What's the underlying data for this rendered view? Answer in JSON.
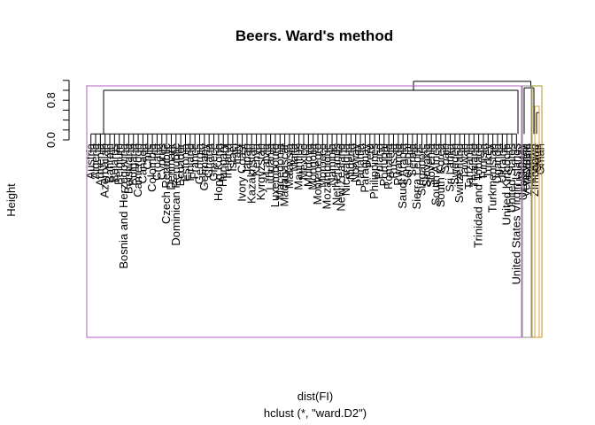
{
  "chart_data": {
    "type": "dendrogram",
    "title": "Beers. Ward's method",
    "xlabel": "dist(FI)",
    "sublabel": "hclust (*, \"ward.D2\")",
    "ylabel": "Height",
    "y_ticks": [
      "0.0",
      "0.8"
    ],
    "ylim": [
      0,
      1.25
    ],
    "root_height": 1.18,
    "group_heights": [
      1.0,
      1.05,
      0.55
    ],
    "rect_colors": [
      "#b45cc8",
      "#8f8f8f",
      "#a89a2a",
      "#e0a030"
    ],
    "leaf_labels": [
      "Austria",
      "Algeria",
      "Armenia",
      "Azerbaijan",
      "Bahrain",
      "Belarus",
      "Belgium",
      "Bosnia and Herzegovina",
      "Botswana",
      "Bulgaria",
      "Cameroon",
      "Canada",
      "Chile",
      "Colombia",
      "Croatia",
      "Cyprus",
      "Czech Republic",
      "Denmark",
      "Dominican Republic",
      "Ecuador",
      "Estonia",
      "Finland",
      "France",
      "Georgia",
      "Germany",
      "Ghana",
      "Greece",
      "Hong Kong",
      "Hungary",
      "Ireland",
      "Israel",
      "Italy",
      "Ivory Coast",
      "Japan",
      "Kazakhstan",
      "Kenya",
      "Kyrgyzstan",
      "Latvia",
      "Lithuania",
      "Luxembourg",
      "Macedonia",
      "Madagascar",
      "Malaysia",
      "Malta",
      "Mauritius",
      "Mexico",
      "Moldova",
      "Mongolia",
      "Montenegro",
      "Morocco",
      "Mozambique",
      "Namibia",
      "Netherlands",
      "New Zealand",
      "Nicaragua",
      "Nigeria",
      "Norway",
      "Panama",
      "Paraguay",
      "Peru",
      "Philippines",
      "Poland",
      "Portugal",
      "Romania",
      "Russia",
      "Rwanda",
      "Saudi Arabia",
      "Senegal",
      "Serbia",
      "Sierra Leone",
      "Singapore",
      "Slovakia",
      "Slovenia",
      "South Africa",
      "South Korea",
      "Spain",
      "Sri Lanka",
      "Sweden",
      "Switzerland",
      "Taiwan",
      "Tanzania",
      "Thailand",
      "Trinidad and Tobago",
      "Tunisia",
      "Turkey",
      "Turkmenistan",
      "Uganda",
      "Ukraine",
      "United Kingdom",
      "United States",
      "United States Virgin Islands",
      "Uruguay",
      "Uzbekistan",
      "Venezuela",
      "Vietnam",
      "Zambia",
      "Zimbabwe",
      "Qatar",
      "Oman"
    ]
  }
}
